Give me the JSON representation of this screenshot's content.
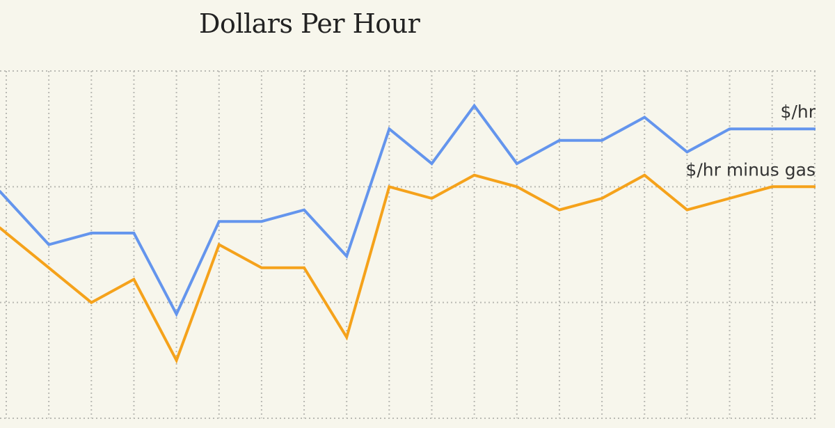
{
  "chart_data": {
    "type": "line",
    "title": "Dollars Per Hour",
    "xlabel": "",
    "ylabel": "",
    "x": [
      0,
      1,
      2,
      3,
      4,
      5,
      6,
      7,
      8,
      9,
      10,
      11,
      12,
      13,
      14,
      15,
      16,
      17,
      18,
      19
    ],
    "ylim": [
      0,
      3
    ],
    "grid": true,
    "legend": "inline-right",
    "series": [
      {
        "name": "$/hr",
        "color": "#6495ed",
        "values": [
          1.9,
          1.5,
          1.6,
          1.6,
          0.9,
          1.7,
          1.7,
          1.8,
          1.4,
          2.5,
          2.2,
          2.7,
          2.2,
          2.4,
          2.4,
          2.6,
          2.3,
          2.5,
          2.5,
          2.5
        ]
      },
      {
        "name": "$/hr minus gas",
        "color": "#f5a21b",
        "values": [
          1.6,
          1.3,
          1.0,
          1.2,
          0.5,
          1.5,
          1.3,
          1.3,
          0.7,
          2.0,
          1.9,
          2.1,
          2.0,
          1.8,
          1.9,
          2.1,
          1.8,
          1.9,
          2.0,
          2.0
        ]
      }
    ]
  }
}
